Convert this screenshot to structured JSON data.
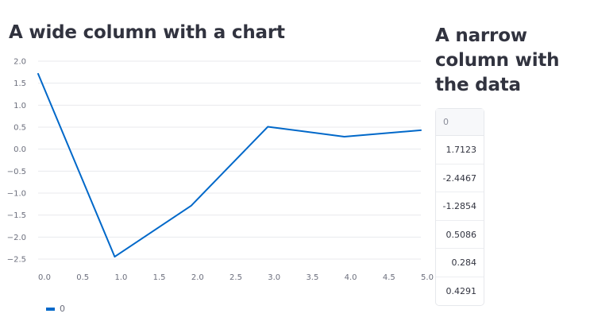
{
  "left_column": {
    "title": "A wide column with a chart"
  },
  "right_column": {
    "title": "A narrow column with the data",
    "table": {
      "header": "0",
      "rows": [
        "1.7123",
        "-2.4467",
        "-1.2854",
        "0.5086",
        "0.284",
        "0.4291"
      ]
    }
  },
  "colors": {
    "series": "#0068c9",
    "grid": "#e8eaed",
    "text": "#31333f"
  },
  "chart_data": {
    "type": "line",
    "title": "",
    "xlabel": "",
    "ylabel": "",
    "x": [
      0,
      1,
      2,
      3,
      4,
      5
    ],
    "series": [
      {
        "name": "0",
        "values": [
          1.7123,
          -2.4467,
          -1.2854,
          0.5086,
          0.284,
          0.4291
        ]
      }
    ],
    "xlim": [
      0,
      5
    ],
    "ylim": [
      -2.5,
      2
    ],
    "xticks": [
      "0.0",
      "0.5",
      "1.0",
      "1.5",
      "2.0",
      "2.5",
      "3.0",
      "3.5",
      "4.0",
      "4.5",
      "5.0"
    ],
    "yticks": [
      "2.0",
      "1.5",
      "1.0",
      "0.5",
      "0.0",
      "−0.5",
      "−1.0",
      "−1.5",
      "−2.0",
      "−2.5"
    ],
    "grid": "horizontal",
    "legend": "bottom-left",
    "legend_entries": [
      "0"
    ]
  }
}
